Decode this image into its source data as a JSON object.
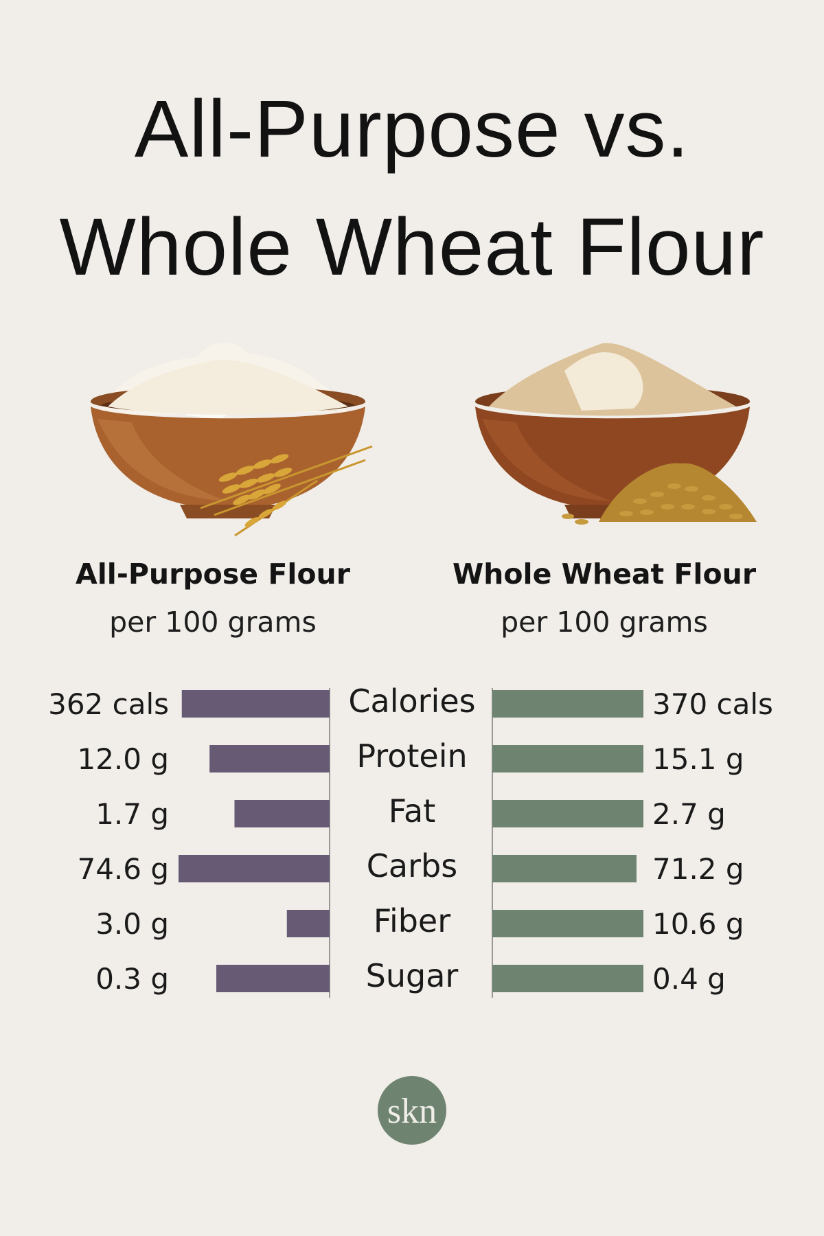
{
  "title": {
    "line1": "All-Purpose vs.",
    "line2": "Whole Wheat Flour"
  },
  "columns": {
    "left": {
      "name": "All-Purpose Flour",
      "subtitle": "per 100 grams"
    },
    "right": {
      "name": "Whole Wheat Flour",
      "subtitle": "per 100 grams"
    }
  },
  "colors": {
    "left_bar": "#665a74",
    "right_bar": "#6e8471",
    "background": "#f1eee9",
    "logo": "#6e8471"
  },
  "chart_data": {
    "type": "bar",
    "orientation": "horizontal-butterfly",
    "categories": [
      "Calories",
      "Protein",
      "Fat",
      "Carbs",
      "Fiber",
      "Sugar"
    ],
    "series": [
      {
        "name": "All-Purpose Flour",
        "values": [
          362,
          12.0,
          1.7,
          74.6,
          3.0,
          0.3
        ],
        "labels": [
          "362 cals",
          "12.0 g",
          "1.7 g",
          "74.6 g",
          "3.0 g",
          "0.3 g"
        ]
      },
      {
        "name": "Whole Wheat Flour",
        "values": [
          370,
          15.1,
          2.7,
          71.2,
          10.6,
          0.4
        ],
        "labels": [
          "370 cals",
          "15.1 g",
          "2.7 g",
          "71.2 g",
          "10.6 g",
          "0.4 g"
        ]
      }
    ],
    "title": "",
    "xlabel": "",
    "ylabel": ""
  },
  "logo": {
    "text": "skn",
    "icon": "skn-monogram-logo"
  }
}
